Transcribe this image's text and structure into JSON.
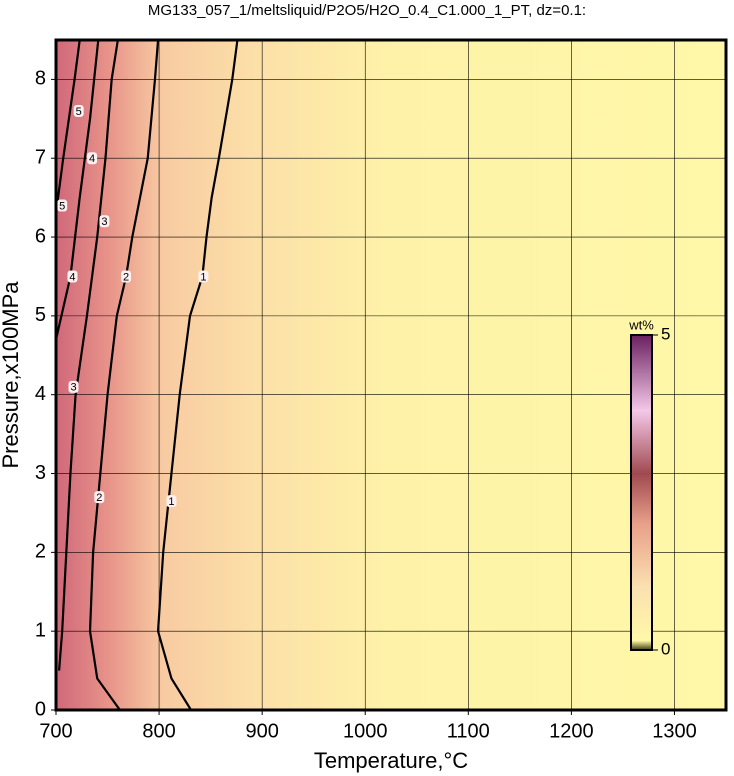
{
  "chart_data": {
    "type": "contour",
    "title": "MG133_057_1/meltsliquid/P2O5/H2O_0.4_C1.000_1_PT, dz=0.1:",
    "xlabel": "Temperature,°C",
    "ylabel": "Pressure,x100MPa",
    "xlim": [
      700,
      1350
    ],
    "ylim": [
      0,
      8.5
    ],
    "xticks": [
      700,
      800,
      900,
      1000,
      1100,
      1200,
      1300
    ],
    "yticks": [
      0,
      1,
      2,
      3,
      4,
      5,
      6,
      7,
      8
    ],
    "grid": true,
    "contours": [
      {
        "level": 1,
        "x": [
          831,
          812,
          799,
          804,
          812,
          820,
          830,
          842,
          846,
          851,
          858,
          871,
          876
        ],
        "y": [
          0,
          0.4,
          1,
          2,
          3,
          4,
          5,
          5.5,
          6,
          6.5,
          7,
          8,
          8.5
        ],
        "label_x": [
          843,
          812
        ],
        "label_y": [
          5.5,
          2.65
        ]
      },
      {
        "level": 2,
        "x": [
          762,
          740,
          733,
          736,
          743,
          750,
          759,
          768,
          774,
          789,
          796,
          799
        ],
        "y": [
          0,
          0.4,
          1,
          2,
          3,
          4,
          5,
          5.5,
          6,
          7,
          8,
          8.5
        ],
        "label_x": [
          768,
          742
        ],
        "label_y": [
          5.5,
          2.7
        ]
      },
      {
        "level": 3,
        "x": [
          703,
          706,
          714,
          719,
          730,
          740,
          748,
          754,
          760
        ],
        "y": [
          0.5,
          1,
          3,
          4,
          5,
          6,
          7,
          8,
          8.5
        ],
        "label_x": [
          747,
          717
        ],
        "label_y": [
          6.2,
          4.1
        ]
      },
      {
        "level": 4,
        "x": [
          700,
          714,
          723,
          733,
          741
        ],
        "y": [
          4.7,
          5.5,
          6.5,
          7.5,
          8.5
        ],
        "label_x": [
          716,
          735
        ],
        "label_y": [
          5.5,
          7.0
        ]
      },
      {
        "level": 5,
        "x": [
          700,
          707,
          718,
          723
        ],
        "y": [
          6.3,
          7,
          8,
          8.5
        ],
        "label_x": [
          706,
          722
        ],
        "label_y": [
          6.4,
          7.6
        ]
      }
    ],
    "colorbar": {
      "label": "wt%",
      "lim": [
        0,
        5
      ],
      "ticks": [
        0,
        5
      ],
      "colormap": [
        {
          "value": 0,
          "color": "#3c3c10"
        },
        {
          "value": 0.15,
          "color": "#fff8a8"
        },
        {
          "value": 1,
          "color": "#fbe0b0"
        },
        {
          "value": 2,
          "color": "#e8a08a"
        },
        {
          "value": 2.8,
          "color": "#a04a50"
        },
        {
          "value": 3.8,
          "color": "#f4c8e8"
        },
        {
          "value": 5,
          "color": "#6a2060"
        }
      ]
    }
  }
}
